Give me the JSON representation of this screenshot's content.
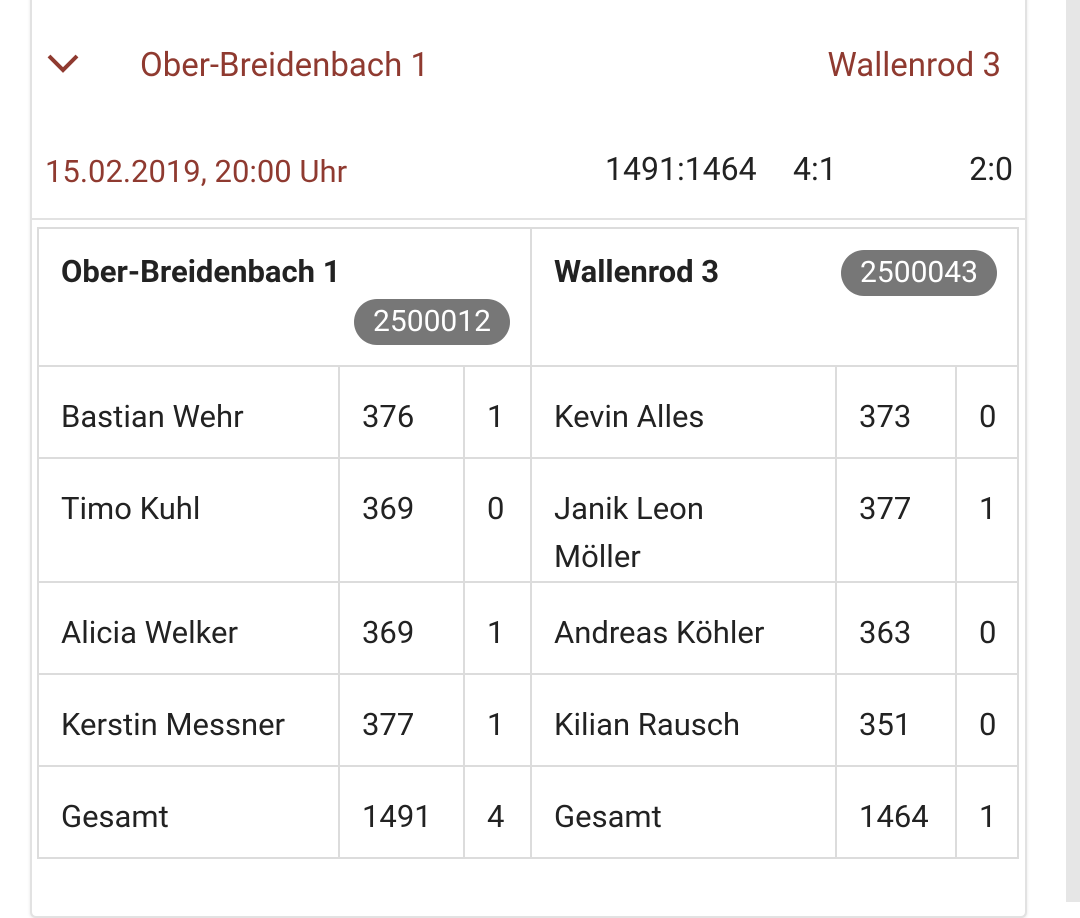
{
  "header": {
    "home": "Ober-Breidenbach 1",
    "away": "Wallenrod 3",
    "date": "15.02.2019, 20:00 Uhr",
    "pins": "1491:1464",
    "sets": "4:1",
    "points": "2:0"
  },
  "table": {
    "home_team": "Ober-Breidenbach 1",
    "home_id": "2500012",
    "away_team": "Wallenrod 3",
    "away_id": "2500043",
    "rows": [
      [
        "Bastian Wehr",
        376,
        1,
        "Kevin Alles",
        373,
        0
      ],
      [
        "Timo Kuhl",
        369,
        0,
        "Janik Leon Möller",
        377,
        1
      ],
      [
        "Alicia Welker",
        369,
        1,
        "Andreas Köhler",
        363,
        0
      ],
      [
        "Kerstin Messner",
        377,
        1,
        "Kilian Rausch",
        351,
        0
      ],
      [
        "Gesamt",
        1491,
        4,
        "Gesamt",
        1464,
        1
      ]
    ]
  }
}
